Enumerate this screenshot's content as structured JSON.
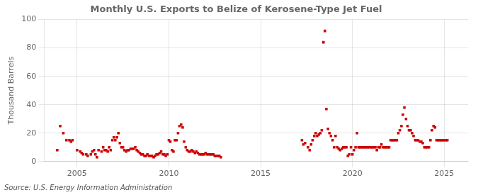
{
  "chart_data": {
    "type": "scatter",
    "title": "Monthly U.S. Exports to Belize of Kerosene-Type Jet Fuel",
    "ylabel": "Thousand Barrels",
    "source": "Source: U.S. Energy Information Administration",
    "color": "#cc0000",
    "marker": "square",
    "grid": true,
    "xlim": [
      2003.2,
      2026.3
    ],
    "xticks": [
      2005,
      2010,
      2015,
      2020,
      2025
    ],
    "ylim": [
      0,
      100
    ],
    "yticks": [
      0,
      20,
      40,
      60,
      80,
      100
    ],
    "x": [
      2003.92,
      2004.08,
      2004.25,
      2004.42,
      2004.58,
      2004.67,
      2004.75,
      2005.0,
      2005.17,
      2005.25,
      2005.33,
      2005.5,
      2005.58,
      2005.75,
      2005.83,
      2005.92,
      2006.0,
      2006.08,
      2006.17,
      2006.33,
      2006.42,
      2006.5,
      2006.58,
      2006.67,
      2006.75,
      2006.83,
      2006.92,
      2007.0,
      2007.08,
      2007.17,
      2007.25,
      2007.33,
      2007.42,
      2007.5,
      2007.58,
      2007.67,
      2007.75,
      2007.83,
      2007.92,
      2008.0,
      2008.08,
      2008.17,
      2008.25,
      2008.33,
      2008.42,
      2008.5,
      2008.58,
      2008.67,
      2008.75,
      2008.83,
      2008.92,
      2009.0,
      2009.08,
      2009.17,
      2009.25,
      2009.33,
      2009.42,
      2009.5,
      2009.58,
      2009.67,
      2009.75,
      2009.83,
      2009.92,
      2010.0,
      2010.08,
      2010.17,
      2010.25,
      2010.33,
      2010.42,
      2010.5,
      2010.58,
      2010.67,
      2010.75,
      2010.83,
      2010.92,
      2011.0,
      2011.08,
      2011.17,
      2011.25,
      2011.33,
      2011.42,
      2011.5,
      2011.58,
      2011.67,
      2011.75,
      2011.83,
      2011.92,
      2012.0,
      2012.08,
      2012.17,
      2012.25,
      2012.33,
      2012.42,
      2012.5,
      2012.58,
      2012.67,
      2012.75,
      2012.83,
      2017.25,
      2017.33,
      2017.42,
      2017.58,
      2017.67,
      2017.75,
      2017.83,
      2017.92,
      2018.0,
      2018.08,
      2018.17,
      2018.25,
      2018.33,
      2018.42,
      2018.5,
      2018.58,
      2018.67,
      2018.75,
      2018.83,
      2018.92,
      2019.0,
      2019.08,
      2019.17,
      2019.25,
      2019.33,
      2019.42,
      2019.5,
      2019.58,
      2019.67,
      2019.75,
      2019.83,
      2019.92,
      2020.0,
      2020.08,
      2020.17,
      2020.25,
      2020.33,
      2020.42,
      2020.5,
      2020.58,
      2020.67,
      2020.75,
      2020.83,
      2020.92,
      2021.0,
      2021.08,
      2021.17,
      2021.25,
      2021.33,
      2021.42,
      2021.5,
      2021.58,
      2021.67,
      2021.75,
      2021.83,
      2021.92,
      2022.0,
      2022.08,
      2022.17,
      2022.25,
      2022.33,
      2022.42,
      2022.5,
      2022.58,
      2022.67,
      2022.75,
      2022.83,
      2022.92,
      2023.0,
      2023.08,
      2023.17,
      2023.25,
      2023.33,
      2023.42,
      2023.5,
      2023.58,
      2023.67,
      2023.75,
      2023.83,
      2023.92,
      2024.0,
      2024.08,
      2024.17,
      2024.25,
      2024.33,
      2024.42,
      2024.5,
      2024.58,
      2024.67,
      2024.75,
      2024.83,
      2024.92,
      2025.0,
      2025.08,
      2025.17
    ],
    "values": [
      8,
      25,
      20,
      15,
      15,
      14,
      15,
      8,
      7,
      6,
      5,
      5,
      4,
      5,
      7,
      8,
      5,
      3,
      8,
      7,
      10,
      8,
      8,
      7,
      10,
      8,
      15,
      17,
      15,
      17,
      20,
      13,
      10,
      10,
      8,
      7,
      8,
      8,
      9,
      9,
      9,
      10,
      8,
      7,
      6,
      5,
      5,
      4,
      4,
      5,
      4,
      4,
      4,
      3,
      4,
      5,
      5,
      6,
      7,
      5,
      5,
      4,
      5,
      15,
      14,
      8,
      7,
      15,
      15,
      20,
      25,
      26,
      24,
      14,
      10,
      8,
      7,
      7,
      8,
      7,
      6,
      7,
      6,
      5,
      5,
      5,
      5,
      6,
      5,
      5,
      5,
      5,
      5,
      4,
      4,
      4,
      4,
      3,
      15,
      12,
      13,
      10,
      8,
      12,
      15,
      18,
      20,
      18,
      19,
      20,
      22,
      84,
      92,
      37,
      23,
      20,
      18,
      15,
      10,
      18,
      10,
      9,
      8,
      9,
      10,
      10,
      10,
      4,
      5,
      10,
      5,
      8,
      10,
      20,
      10,
      10,
      10,
      10,
      10,
      10,
      10,
      10,
      10,
      10,
      10,
      10,
      8,
      10,
      10,
      12,
      10,
      10,
      10,
      10,
      10,
      15,
      15,
      15,
      15,
      15,
      20,
      22,
      25,
      33,
      38,
      30,
      25,
      22,
      22,
      20,
      18,
      15,
      15,
      15,
      14,
      14,
      13,
      10,
      10,
      10,
      10,
      15,
      22,
      25,
      24,
      15,
      15,
      15,
      15,
      15,
      15,
      15,
      15
    ]
  }
}
